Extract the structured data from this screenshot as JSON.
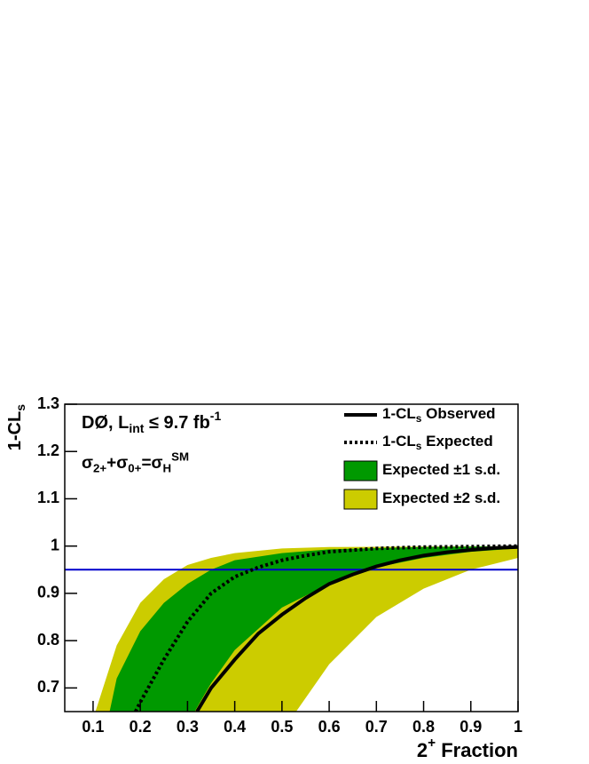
{
  "chart_data": {
    "type": "limit-band",
    "annotations": [
      [
        {
          "text": "DØ, L"
        },
        {
          "text": "int",
          "script": "sub"
        },
        {
          "text": " ≤ 9.7 fb"
        },
        {
          "text": "-1",
          "script": "sup"
        }
      ],
      [
        {
          "text": "σ"
        },
        {
          "text": "2+",
          "script": "sub"
        },
        {
          "text": "+σ"
        },
        {
          "text": "0+",
          "script": "sub"
        },
        {
          "text": "=σ"
        },
        {
          "text": "H",
          "script": "sub"
        },
        {
          "text": "SM",
          "script": "sup"
        }
      ]
    ],
    "xlabel": [
      {
        "text": "2"
      },
      {
        "text": "+",
        "script": "sup"
      },
      {
        "text": " Fraction"
      }
    ],
    "ylabel": [
      {
        "text": "1-CL"
      },
      {
        "text": "s",
        "script": "sub"
      }
    ],
    "xlim": [
      0.04,
      1
    ],
    "ylim": [
      0.65,
      1.3
    ],
    "xticks": [
      0.1,
      0.2,
      0.3,
      0.4,
      0.5,
      0.6,
      0.7,
      0.8,
      0.9,
      1
    ],
    "yticks": [
      0.7,
      0.8,
      0.9,
      1,
      1.1,
      1.2,
      1.3
    ],
    "hline": {
      "value": 0.95,
      "color": "#0000cc"
    },
    "series": [
      {
        "name": [
          {
            "text": "1-CL"
          },
          {
            "text": "s",
            "script": "sub"
          },
          {
            "text": " Observed"
          }
        ],
        "kind": "line",
        "dashed": false,
        "color": "#000000",
        "x": [
          0.32,
          0.35,
          0.4,
          0.45,
          0.5,
          0.55,
          0.6,
          0.65,
          0.7,
          0.75,
          0.8,
          0.85,
          0.9,
          0.95,
          1.0
        ],
        "values": [
          0.65,
          0.7,
          0.76,
          0.815,
          0.855,
          0.89,
          0.92,
          0.94,
          0.957,
          0.97,
          0.98,
          0.987,
          0.992,
          0.996,
          0.998
        ]
      },
      {
        "name": [
          {
            "text": "1-CL"
          },
          {
            "text": "s",
            "script": "sub"
          },
          {
            "text": " Expected"
          }
        ],
        "kind": "line",
        "dashed": true,
        "color": "#000000",
        "x": [
          0.19,
          0.2,
          0.25,
          0.3,
          0.35,
          0.4,
          0.45,
          0.5,
          0.55,
          0.6,
          0.7,
          0.8,
          0.9,
          1.0
        ],
        "values": [
          0.65,
          0.67,
          0.76,
          0.84,
          0.9,
          0.935,
          0.955,
          0.97,
          0.98,
          0.988,
          0.995,
          0.998,
          0.999,
          1.0
        ]
      },
      {
        "name": [
          {
            "text": "Expected ±1 s.d."
          }
        ],
        "kind": "band",
        "color": "#009900",
        "upper": {
          "x": [
            0.135,
            0.15,
            0.2,
            0.25,
            0.3,
            0.35,
            0.4,
            0.5,
            0.6,
            0.8,
            1.0
          ],
          "values": [
            0.65,
            0.72,
            0.82,
            0.88,
            0.92,
            0.95,
            0.97,
            0.985,
            0.993,
            0.998,
            1.0
          ]
        },
        "lower": {
          "x": [
            0.315,
            0.35,
            0.4,
            0.5,
            0.6,
            0.7,
            0.8,
            0.9,
            1.0
          ],
          "values": [
            0.65,
            0.71,
            0.78,
            0.87,
            0.92,
            0.955,
            0.975,
            0.988,
            0.995
          ]
        }
      },
      {
        "name": [
          {
            "text": "Expected ±2 s.d."
          }
        ],
        "kind": "band",
        "color": "#cccc00",
        "upper": {
          "x": [
            0.105,
            0.15,
            0.2,
            0.25,
            0.3,
            0.35,
            0.4,
            0.5,
            0.6,
            1.0
          ],
          "values": [
            0.65,
            0.79,
            0.88,
            0.93,
            0.96,
            0.975,
            0.985,
            0.995,
            0.998,
            1.0
          ]
        },
        "lower": {
          "x": [
            0.53,
            0.6,
            0.7,
            0.8,
            0.9,
            1.0
          ],
          "values": [
            0.65,
            0.75,
            0.85,
            0.91,
            0.95,
            0.975
          ]
        }
      }
    ]
  }
}
